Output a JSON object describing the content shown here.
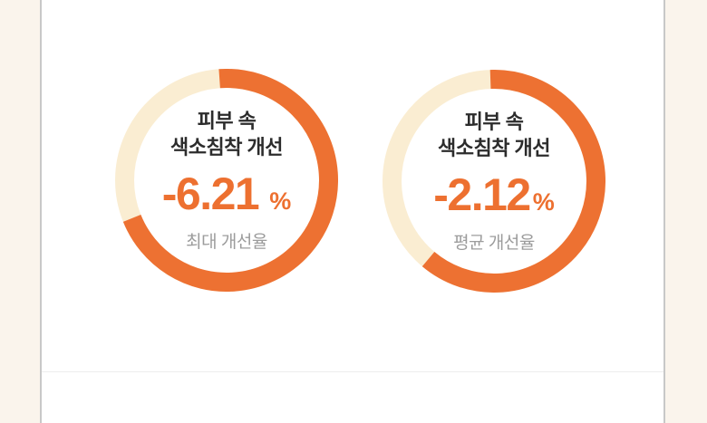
{
  "page": {
    "background_color": "#FAF4EC",
    "card_background": "#FFFFFF",
    "card_border_color": "#C8C8C8",
    "divider_color": "#EDEDED"
  },
  "chart_data": {
    "type": "pie",
    "variant": "donut-gauge",
    "legend_position": "none",
    "colors": {
      "ring_filled": "#ED7132",
      "ring_track": "#FAEDD2",
      "value_text": "#ED7030",
      "title_text": "#2C2C2C",
      "caption_text": "#9C9C9C"
    },
    "charts": [
      {
        "title_line1": "피부 속",
        "title_line2": "색소침착 개선",
        "value": "-6.21",
        "value_numeric": -6.21,
        "unit": "%",
        "caption": "최대 개선율",
        "ring": {
          "start_deg": -4,
          "sweep_deg": 252,
          "filled_fraction": 0.7
        }
      },
      {
        "title_line1": "피부 속",
        "title_line2": "색소침착 개선",
        "value": "-2.12",
        "value_numeric": -2.12,
        "unit": "%",
        "caption": "평균 개선율",
        "ring": {
          "start_deg": -2,
          "sweep_deg": 222,
          "filled_fraction": 0.62
        }
      }
    ]
  }
}
